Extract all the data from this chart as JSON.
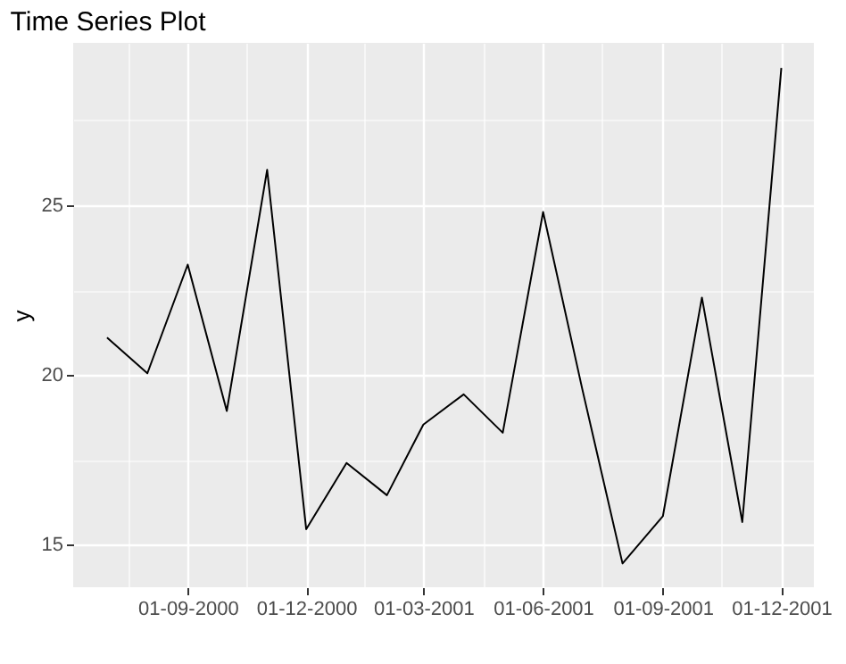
{
  "chart_data": {
    "type": "line",
    "title": "Time Series Plot",
    "ylabel": "y",
    "x": [
      "2000-07-01",
      "2000-08-01",
      "2000-09-01",
      "2000-10-01",
      "2000-11-01",
      "2000-12-01",
      "2001-01-01",
      "2001-02-01",
      "2001-03-01",
      "2001-04-01",
      "2001-05-01",
      "2001-06-01",
      "2001-07-01",
      "2001-08-01",
      "2001-09-01",
      "2001-10-01",
      "2001-11-01",
      "2001-12-01"
    ],
    "series": [
      {
        "color": "#000000",
        "values": [
          21.1,
          20.05,
          23.25,
          18.94,
          26.04,
          15.46,
          17.41,
          16.46,
          18.54,
          19.43,
          18.3,
          24.8,
          19.6,
          14.45,
          15.84,
          22.28,
          15.67,
          29.04
        ]
      }
    ],
    "xlim": [
      "2000-06-05",
      "2001-12-26"
    ],
    "xticks": [
      {
        "value": "2000-07-17",
        "label": null
      },
      {
        "value": "2000-09-01",
        "label": "01-09-2000"
      },
      {
        "value": "2000-10-16",
        "label": null
      },
      {
        "value": "2000-12-01",
        "label": "01-12-2000"
      },
      {
        "value": "2001-01-15",
        "label": null
      },
      {
        "value": "2001-03-01",
        "label": "01-03-2001"
      },
      {
        "value": "2001-04-16",
        "label": null
      },
      {
        "value": "2001-06-01",
        "label": "01-06-2001"
      },
      {
        "value": "2001-07-16",
        "label": null
      },
      {
        "value": "2001-09-01",
        "label": "01-09-2001"
      },
      {
        "value": "2001-10-16",
        "label": null
      },
      {
        "value": "2001-12-01",
        "label": "01-12-2001"
      }
    ],
    "ylim": [
      13.75,
      29.78
    ],
    "yticks": [
      15,
      {
        "value": 17.5,
        "label": null
      },
      20,
      {
        "value": 22.5,
        "label": null
      },
      25,
      {
        "value": 27.5,
        "label": null
      }
    ],
    "grid": true,
    "marker": "none",
    "line_style": "solid"
  }
}
